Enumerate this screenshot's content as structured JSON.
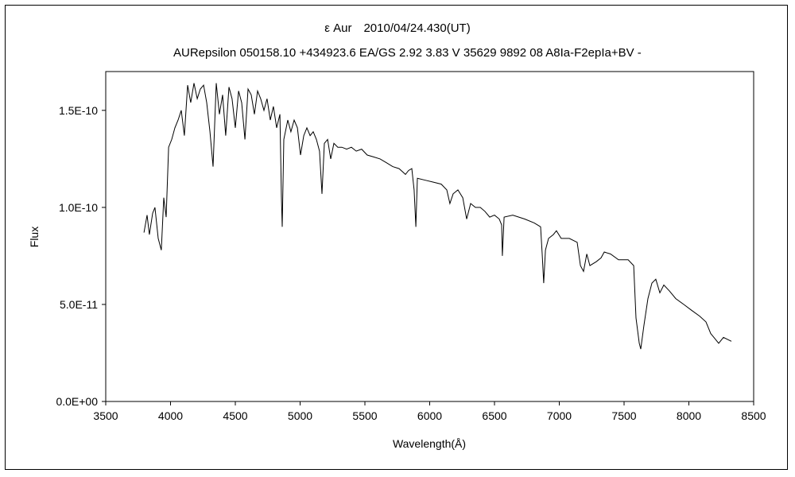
{
  "chart_data": {
    "type": "line",
    "title": "ε Aur　2010/04/24.430(UT)",
    "subtitle": "AURepsilon 050158.10 +434923.6 EA/GS 2.92 3.83 V 35629 9892 08 A8Ia-F2epIa+BV -",
    "xlabel": "Wavelength(Å)",
    "ylabel": "Flux",
    "xlim": [
      3500,
      8500
    ],
    "ylim": [
      0,
      1.7e-10
    ],
    "y_unit_multiplier": 1e-10,
    "x_ticks": [
      "3500",
      "4000",
      "4500",
      "5000",
      "5500",
      "6000",
      "6500",
      "7000",
      "7500",
      "8000",
      "8500"
    ],
    "x_tick_values": [
      3500,
      4000,
      4500,
      5000,
      5500,
      6000,
      6500,
      7000,
      7500,
      8000,
      8500
    ],
    "y_ticks": [
      "0.0E+00",
      "5.0E-11",
      "1.0E-10",
      "1.5E-10"
    ],
    "y_tick_values": [
      0,
      0.5,
      1.0,
      1.5
    ],
    "grid": false,
    "legend": "none",
    "color": "#000000",
    "series": [
      {
        "name": "Flux",
        "x": [
          3795,
          3819,
          3837,
          3862,
          3880,
          3905,
          3929,
          3948,
          3966,
          3985,
          4009,
          4034,
          4058,
          4083,
          4107,
          4132,
          4156,
          4181,
          4206,
          4230,
          4255,
          4279,
          4304,
          4328,
          4353,
          4377,
          4402,
          4426,
          4451,
          4475,
          4500,
          4525,
          4549,
          4574,
          4598,
          4623,
          4647,
          4672,
          4696,
          4721,
          4745,
          4770,
          4794,
          4819,
          4844,
          4856,
          4862,
          4874,
          4905,
          4929,
          4954,
          4979,
          5003,
          5028,
          5052,
          5077,
          5101,
          5126,
          5150,
          5169,
          5187,
          5212,
          5236,
          5261,
          5291,
          5322,
          5359,
          5396,
          5433,
          5475,
          5518,
          5567,
          5617,
          5666,
          5715,
          5764,
          5813,
          5837,
          5862,
          5880,
          5893,
          5905,
          5966,
          6028,
          6089,
          6132,
          6156,
          6181,
          6218,
          6255,
          6285,
          6316,
          6353,
          6390,
          6426,
          6463,
          6500,
          6537,
          6555,
          6561,
          6574,
          6641,
          6733,
          6807,
          6856,
          6868,
          6880,
          6893,
          6917,
          6954,
          6978,
          7015,
          7077,
          7138,
          7163,
          7187,
          7212,
          7236,
          7285,
          7322,
          7347,
          7396,
          7457,
          7531,
          7574,
          7592,
          7617,
          7629,
          7653,
          7684,
          7715,
          7745,
          7776,
          7807,
          7850,
          7899,
          7960,
          8021,
          8083,
          8132,
          8169,
          8193,
          8230,
          8267,
          8328
        ],
        "y": [
          0.87,
          0.96,
          0.86,
          0.97,
          1.0,
          0.84,
          0.78,
          1.05,
          0.95,
          1.31,
          1.35,
          1.41,
          1.45,
          1.5,
          1.37,
          1.63,
          1.54,
          1.64,
          1.56,
          1.61,
          1.63,
          1.54,
          1.39,
          1.21,
          1.64,
          1.48,
          1.58,
          1.37,
          1.62,
          1.56,
          1.41,
          1.6,
          1.54,
          1.35,
          1.61,
          1.58,
          1.48,
          1.6,
          1.56,
          1.5,
          1.56,
          1.45,
          1.52,
          1.41,
          1.48,
          1.05,
          0.9,
          1.35,
          1.45,
          1.39,
          1.45,
          1.41,
          1.27,
          1.37,
          1.41,
          1.37,
          1.39,
          1.35,
          1.29,
          1.07,
          1.33,
          1.35,
          1.25,
          1.33,
          1.31,
          1.31,
          1.3,
          1.31,
          1.29,
          1.3,
          1.27,
          1.26,
          1.25,
          1.23,
          1.21,
          1.2,
          1.17,
          1.19,
          1.2,
          1.09,
          0.9,
          1.15,
          1.14,
          1.13,
          1.12,
          1.09,
          1.02,
          1.07,
          1.09,
          1.05,
          0.94,
          1.02,
          1.0,
          1.0,
          0.98,
          0.95,
          0.96,
          0.94,
          0.91,
          0.75,
          0.95,
          0.96,
          0.94,
          0.92,
          0.9,
          0.76,
          0.61,
          0.78,
          0.84,
          0.86,
          0.88,
          0.84,
          0.84,
          0.82,
          0.7,
          0.67,
          0.76,
          0.7,
          0.72,
          0.74,
          0.77,
          0.76,
          0.73,
          0.73,
          0.7,
          0.43,
          0.3,
          0.27,
          0.39,
          0.53,
          0.61,
          0.63,
          0.56,
          0.6,
          0.57,
          0.53,
          0.5,
          0.47,
          0.44,
          0.41,
          0.35,
          0.33,
          0.3,
          0.33,
          0.31
        ]
      }
    ]
  }
}
